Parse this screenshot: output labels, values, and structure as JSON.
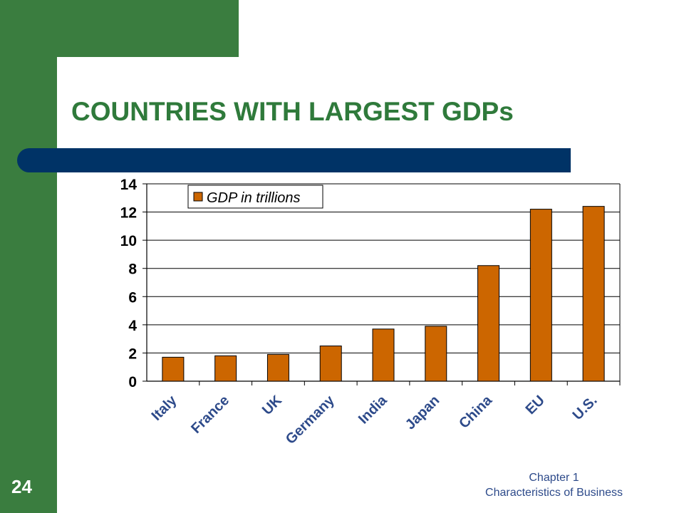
{
  "slide": {
    "title": "COUNTRIES WITH LARGEST GDPs",
    "number": "24",
    "footer_line1": "Chapter 1",
    "footer_line2": "Characteristics of Business",
    "colors": {
      "green": "#3a7d3f",
      "title": "#2f7a3b",
      "navy": "#003366",
      "footer": "#2d4a8a"
    }
  },
  "chart_data": {
    "type": "bar",
    "categories": [
      "Italy",
      "France",
      "UK",
      "Germany",
      "India",
      "Japan",
      "China",
      "EU",
      "U.S."
    ],
    "series": [
      {
        "name": "GDP in trillions",
        "values": [
          1.7,
          1.8,
          1.9,
          2.5,
          3.7,
          3.9,
          8.2,
          12.2,
          12.4
        ],
        "color": "#cc6600"
      }
    ],
    "ylim": [
      0,
      14
    ],
    "yticks": [
      0,
      2,
      4,
      6,
      8,
      10,
      12,
      14
    ],
    "grid": true,
    "legend": "top-left"
  }
}
